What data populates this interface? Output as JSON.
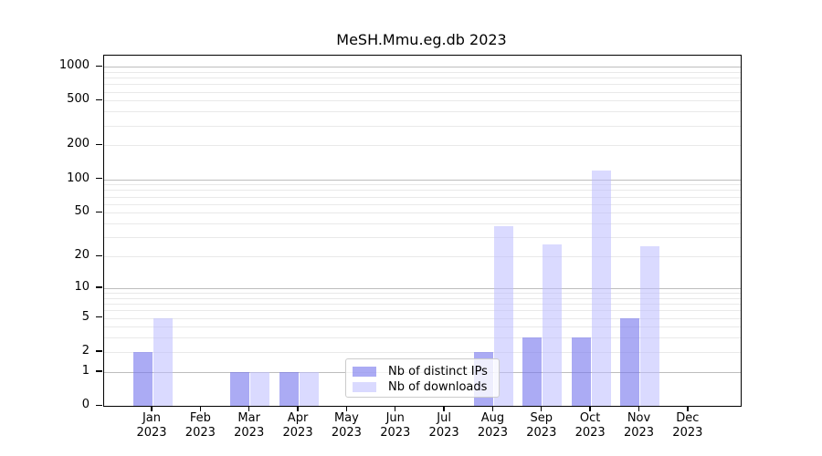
{
  "title": "MeSH.Mmu.eg.db 2023",
  "chart_data": {
    "type": "bar",
    "title": "MeSH.Mmu.eg.db 2023",
    "categories": [
      "Jan 2023",
      "Feb 2023",
      "Mar 2023",
      "Apr 2023",
      "May 2023",
      "Jun 2023",
      "Jul 2023",
      "Aug 2023",
      "Sep 2023",
      "Oct 2023",
      "Nov 2023",
      "Dec 2023"
    ],
    "x_tick_months": [
      "Jan",
      "Feb",
      "Mar",
      "Apr",
      "May",
      "Jun",
      "Jul",
      "Aug",
      "Sep",
      "Oct",
      "Nov",
      "Dec"
    ],
    "x_tick_year": "2023",
    "series": [
      {
        "key": "distinct-ips",
        "name": "Nb of distinct IPs",
        "values": [
          2,
          0,
          1,
          1,
          0,
          0,
          0,
          2,
          3,
          3,
          5,
          0
        ],
        "color": "#7777ee",
        "alpha": 0.62
      },
      {
        "key": "downloads",
        "name": "Nb of downloads",
        "values": [
          5,
          0,
          1,
          1,
          0,
          0,
          0,
          38,
          26,
          120,
          25,
          0
        ],
        "color": "#bbbbff",
        "alpha": 0.55
      }
    ],
    "yscale": "log10(1+y)",
    "yticks": [
      0,
      1,
      2,
      5,
      10,
      20,
      50,
      100,
      200,
      500,
      1000
    ],
    "ytick_labels": [
      "0",
      "1",
      "2",
      "5",
      "10",
      "20",
      "50",
      "100",
      "200",
      "500",
      "1000"
    ],
    "minor_yticks": [
      3,
      4,
      6,
      7,
      8,
      9,
      30,
      40,
      60,
      70,
      80,
      90,
      300,
      400,
      600,
      700,
      800,
      900
    ],
    "ylim": [
      0,
      1250
    ],
    "grid": true,
    "legend_position": "inside lower-center",
    "colors": {
      "major_grid": "#bdbdbd",
      "minor_grid": "#e9e9e9",
      "axis": "#000000",
      "background": "#ffffff"
    }
  },
  "legend": {
    "items": [
      {
        "label": "Nb of distinct IPs"
      },
      {
        "label": "Nb of downloads"
      }
    ]
  }
}
